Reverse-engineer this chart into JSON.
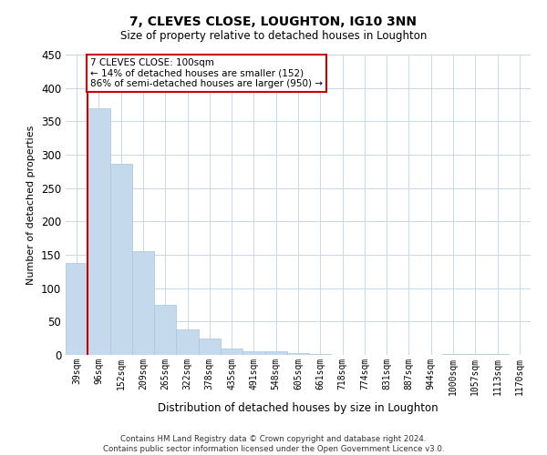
{
  "title": "7, CLEVES CLOSE, LOUGHTON, IG10 3NN",
  "subtitle": "Size of property relative to detached houses in Loughton",
  "xlabel": "Distribution of detached houses by size in Loughton",
  "ylabel": "Number of detached properties",
  "bar_color": "#c5d9ed",
  "bar_edge_color": "#a8c4df",
  "highlight_color": "#cc0000",
  "bin_labels": [
    "39sqm",
    "96sqm",
    "152sqm",
    "209sqm",
    "265sqm",
    "322sqm",
    "378sqm",
    "435sqm",
    "491sqm",
    "548sqm",
    "605sqm",
    "661sqm",
    "718sqm",
    "774sqm",
    "831sqm",
    "887sqm",
    "944sqm",
    "1000sqm",
    "1057sqm",
    "1113sqm",
    "1170sqm"
  ],
  "bin_values": [
    138,
    370,
    287,
    155,
    75,
    38,
    25,
    10,
    5,
    5,
    3,
    1,
    0,
    0,
    0,
    0,
    0,
    2,
    1,
    1,
    0
  ],
  "ylim": [
    0,
    450
  ],
  "yticks": [
    0,
    50,
    100,
    150,
    200,
    250,
    300,
    350,
    400,
    450
  ],
  "property_line_x": 1,
  "annotation_title": "7 CLEVES CLOSE: 100sqm",
  "annotation_line1": "← 14% of detached houses are smaller (152)",
  "annotation_line2": "86% of semi-detached houses are larger (950) →",
  "footer_line1": "Contains HM Land Registry data © Crown copyright and database right 2024.",
  "footer_line2": "Contains public sector information licensed under the Open Government Licence v3.0.",
  "background_color": "#ffffff",
  "grid_color": "#c8d8e8"
}
